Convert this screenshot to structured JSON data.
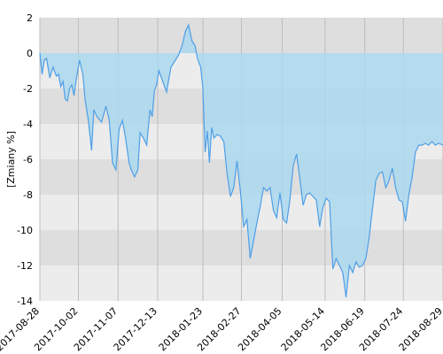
{
  "chart_data": {
    "type": "area",
    "title": "",
    "xlabel": "",
    "ylabel": "[Zmiany %]",
    "ylim": [
      -14,
      2
    ],
    "yticks": [
      2,
      0,
      -2,
      -4,
      -6,
      -8,
      -10,
      -12,
      -14
    ],
    "ytick_labels": [
      "2",
      "0",
      "-2",
      "-4",
      "-6",
      "-8",
      "-10",
      "-12",
      "-14"
    ],
    "xticks": [
      "2017-08-28",
      "2017-10-02",
      "2017-11-07",
      "2017-12-13",
      "2018-01-23",
      "2018-02-27",
      "2018-04-05",
      "2018-05-14",
      "2018-06-19",
      "2018-07-24",
      "2018-08-29"
    ],
    "xlim": [
      "2017-08-28",
      "2018-08-29"
    ],
    "grid": true,
    "colors": {
      "line": "#4f9fe6",
      "fill": "#aad8ef",
      "band_dark": "#dedede",
      "band_light": "#ececec",
      "gridline": "#bdbdbd"
    },
    "series": [
      {
        "x": [
          "2017-08-28",
          "2017-08-30",
          "2017-09-01",
          "2017-09-03",
          "2017-09-06",
          "2017-09-09",
          "2017-09-12",
          "2017-09-14",
          "2017-09-16",
          "2017-09-18",
          "2017-09-20",
          "2017-09-22",
          "2017-09-24",
          "2017-09-26",
          "2017-09-28",
          "2017-09-30",
          "2017-10-03",
          "2017-10-06",
          "2017-10-08",
          "2017-10-11",
          "2017-10-14",
          "2017-10-16",
          "2017-10-19",
          "2017-10-23",
          "2017-10-27",
          "2017-10-30",
          "2017-11-02",
          "2017-11-05",
          "2017-11-08",
          "2017-11-11",
          "2017-11-14",
          "2017-11-17",
          "2017-11-19",
          "2017-11-22",
          "2017-11-25",
          "2017-11-27",
          "2017-11-30",
          "2017-12-03",
          "2017-12-06",
          "2017-12-08",
          "2017-12-10",
          "2017-12-12",
          "2017-12-14",
          "2017-12-17",
          "2017-12-21",
          "2017-12-25",
          "2017-12-29",
          "2018-01-01",
          "2018-01-04",
          "2018-01-07",
          "2018-01-10",
          "2018-01-13",
          "2018-01-16",
          "2018-01-18",
          "2018-01-21",
          "2018-01-23",
          "2018-01-25",
          "2018-01-27",
          "2018-01-29",
          "2018-01-31",
          "2018-02-02",
          "2018-02-05",
          "2018-02-08",
          "2018-02-11",
          "2018-02-14",
          "2018-02-17",
          "2018-02-20",
          "2018-02-23",
          "2018-02-26",
          "2018-03-01",
          "2018-03-04",
          "2018-03-07",
          "2018-03-10",
          "2018-03-13",
          "2018-03-16",
          "2018-03-19",
          "2018-03-22",
          "2018-03-25",
          "2018-03-28",
          "2018-03-31",
          "2018-04-03",
          "2018-04-06",
          "2018-04-09",
          "2018-04-12",
          "2018-04-15",
          "2018-04-18",
          "2018-04-21",
          "2018-04-24",
          "2018-04-27",
          "2018-04-30",
          "2018-05-03",
          "2018-05-06",
          "2018-05-09",
          "2018-05-12",
          "2018-05-15",
          "2018-05-18",
          "2018-05-21",
          "2018-05-24",
          "2018-05-27",
          "2018-05-30",
          "2018-06-02",
          "2018-06-05",
          "2018-06-08",
          "2018-06-11",
          "2018-06-14",
          "2018-06-17",
          "2018-06-20",
          "2018-06-23",
          "2018-06-26",
          "2018-06-29",
          "2018-07-02",
          "2018-07-05",
          "2018-07-08",
          "2018-07-11",
          "2018-07-14",
          "2018-07-17",
          "2018-07-20",
          "2018-07-23",
          "2018-07-26",
          "2018-07-29",
          "2018-08-01",
          "2018-08-04",
          "2018-08-07",
          "2018-08-10",
          "2018-08-13",
          "2018-08-16",
          "2018-08-19",
          "2018-08-22",
          "2018-08-25",
          "2018-08-29"
        ],
        "values": [
          0.0,
          -1.2,
          -0.4,
          -0.3,
          -1.4,
          -0.8,
          -1.3,
          -1.2,
          -1.9,
          -1.6,
          -2.6,
          -2.7,
          -2.0,
          -1.8,
          -2.4,
          -1.5,
          -0.4,
          -1.2,
          -2.6,
          -3.8,
          -5.5,
          -3.2,
          -3.6,
          -3.9,
          -3.0,
          -3.8,
          -6.2,
          -6.6,
          -4.3,
          -3.8,
          -4.9,
          -6.2,
          -6.6,
          -7.0,
          -6.6,
          -4.5,
          -4.8,
          -5.2,
          -3.2,
          -3.6,
          -2.1,
          -1.8,
          -1.0,
          -1.5,
          -2.2,
          -0.8,
          -0.4,
          -0.1,
          0.4,
          1.2,
          1.6,
          0.7,
          0.4,
          -0.3,
          -0.8,
          -2.0,
          -5.6,
          -4.4,
          -6.2,
          -4.2,
          -4.8,
          -4.6,
          -4.7,
          -5.0,
          -6.8,
          -8.1,
          -7.6,
          -6.1,
          -7.8,
          -9.8,
          -9.4,
          -11.6,
          -10.6,
          -9.6,
          -8.7,
          -7.6,
          -7.8,
          -7.6,
          -8.9,
          -9.3,
          -7.9,
          -9.4,
          -9.6,
          -8.3,
          -6.4,
          -5.7,
          -7.1,
          -8.6,
          -8.0,
          -7.9,
          -8.1,
          -8.3,
          -9.8,
          -8.7,
          -8.2,
          -8.4,
          -12.2,
          -11.6,
          -12.0,
          -12.4,
          -13.8,
          -12.0,
          -12.4,
          -11.8,
          -12.1,
          -12.0,
          -11.6,
          -10.4,
          -8.8,
          -7.2,
          -6.8,
          -6.7,
          -7.6,
          -7.2,
          -6.5,
          -7.6,
          -8.3,
          -8.4,
          -9.5,
          -8.0,
          -7.0,
          -5.6,
          -5.2,
          -5.2,
          -5.1,
          -5.2,
          -5.0,
          -5.2,
          -5.1,
          -5.2
        ]
      }
    ]
  }
}
